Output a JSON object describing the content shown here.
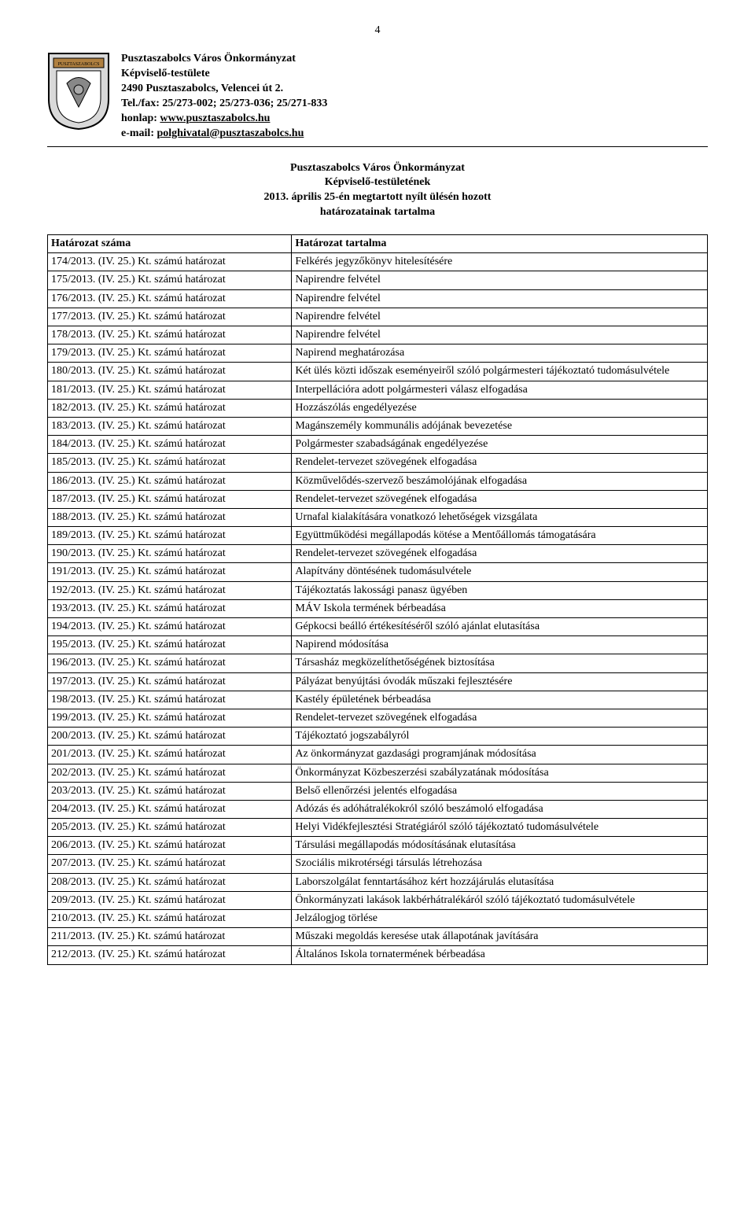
{
  "page_number": "4",
  "org": {
    "line1": "Pusztaszabolcs Város Önkormányzat",
    "line2": "Képviselő-testülete",
    "line3": "2490 Pusztaszabolcs, Velencei út 2.",
    "line4": "Tel./fax: 25/273-002; 25/273-036; 25/271-833",
    "line5_prefix": "honlap: ",
    "line5_link": "www.pusztaszabolcs.hu",
    "line6_prefix": "e-mail: ",
    "line6_link": "polghivatal@pusztaszabolcs.hu"
  },
  "meeting": {
    "l1": "Pusztaszabolcs Város Önkormányzat",
    "l2": "Képviselő-testületének",
    "l3": "2013. április 25-én megtartott nyílt ülésén hozott",
    "l4": "határozatainak tartalma"
  },
  "table": {
    "head_left": "Határozat száma",
    "head_right": "Határozat tartalma",
    "rows": [
      [
        "174/2013. (IV. 25.) Kt. számú határozat",
        "Felkérés jegyzőkönyv hitelesítésére"
      ],
      [
        "175/2013. (IV. 25.) Kt. számú határozat",
        "Napirendre felvétel"
      ],
      [
        "176/2013. (IV. 25.) Kt. számú határozat",
        "Napirendre felvétel"
      ],
      [
        "177/2013. (IV. 25.) Kt. számú határozat",
        "Napirendre felvétel"
      ],
      [
        "178/2013. (IV. 25.) Kt. számú határozat",
        "Napirendre felvétel"
      ],
      [
        "179/2013. (IV. 25.) Kt. számú határozat",
        "Napirend meghatározása"
      ],
      [
        "180/2013. (IV. 25.) Kt. számú határozat",
        "Két ülés közti időszak eseményeiről szóló polgármesteri tájékoztató tudomásulvétele"
      ],
      [
        "181/2013. (IV. 25.) Kt. számú határozat",
        "Interpellációra adott polgármesteri válasz elfogadása"
      ],
      [
        "182/2013. (IV. 25.) Kt. számú határozat",
        "Hozzászólás engedélyezése"
      ],
      [
        "183/2013. (IV. 25.) Kt. számú határozat",
        "Magánszemély kommunális adójának bevezetése"
      ],
      [
        "184/2013. (IV. 25.) Kt. számú határozat",
        "Polgármester szabadságának engedélyezése"
      ],
      [
        "185/2013. (IV. 25.) Kt. számú határozat",
        "Rendelet-tervezet szövegének elfogadása"
      ],
      [
        "186/2013. (IV. 25.) Kt. számú határozat",
        "Közművelődés-szervező beszámolójának elfogadása"
      ],
      [
        "187/2013. (IV. 25.) Kt. számú határozat",
        "Rendelet-tervezet szövegének elfogadása"
      ],
      [
        "188/2013. (IV. 25.) Kt. számú határozat",
        "Urnafal kialakítására vonatkozó lehetőségek vizsgálata"
      ],
      [
        "189/2013. (IV. 25.) Kt. számú határozat",
        "Együttműködési megállapodás kötése a Mentőállomás támogatására"
      ],
      [
        "190/2013. (IV. 25.) Kt. számú határozat",
        "Rendelet-tervezet szövegének elfogadása"
      ],
      [
        "191/2013. (IV. 25.) Kt. számú határozat",
        "Alapítvány döntésének tudomásulvétele"
      ],
      [
        "192/2013. (IV. 25.) Kt. számú határozat",
        "Tájékoztatás lakossági panasz ügyében"
      ],
      [
        "193/2013. (IV. 25.) Kt. számú határozat",
        "MÁV Iskola termének bérbeadása"
      ],
      [
        "194/2013. (IV. 25.) Kt. számú határozat",
        "Gépkocsi beálló értékesítéséről szóló ajánlat elutasítása"
      ],
      [
        "195/2013. (IV. 25.) Kt. számú határozat",
        "Napirend módosítása"
      ],
      [
        "196/2013. (IV. 25.) Kt. számú határozat",
        "Társasház megközelíthetőségének biztosítása"
      ],
      [
        "197/2013. (IV. 25.) Kt. számú határozat",
        "Pályázat benyújtási óvodák műszaki fejlesztésére"
      ],
      [
        "198/2013. (IV. 25.) Kt. számú határozat",
        "Kastély épületének bérbeadása"
      ],
      [
        "199/2013. (IV. 25.) Kt. számú határozat",
        "Rendelet-tervezet szövegének elfogadása"
      ],
      [
        "200/2013. (IV. 25.) Kt. számú határozat",
        "Tájékoztató jogszabályról"
      ],
      [
        "201/2013. (IV. 25.) Kt. számú határozat",
        "Az önkormányzat gazdasági programjának módosítása"
      ],
      [
        "202/2013. (IV. 25.) Kt. számú határozat",
        "Önkormányzat Közbeszerzési szabályzatának módosítása"
      ],
      [
        "203/2013. (IV. 25.) Kt. számú határozat",
        "Belső ellenőrzési jelentés elfogadása"
      ],
      [
        "204/2013. (IV. 25.) Kt. számú határozat",
        "Adózás és adóhátralékokról szóló beszámoló elfogadása"
      ],
      [
        "205/2013. (IV. 25.) Kt. számú határozat",
        "Helyi Vidékfejlesztési Stratégiáról szóló tájékoztató tudomásulvétele"
      ],
      [
        "206/2013. (IV. 25.) Kt. számú határozat",
        "Társulási megállapodás módosításának elutasítása"
      ],
      [
        "207/2013. (IV. 25.) Kt. számú határozat",
        "Szociális mikrotérségi társulás létrehozása"
      ],
      [
        "208/2013. (IV. 25.) Kt. számú határozat",
        "Laborszolgálat fenntartásához kért hozzájárulás elutasítása"
      ],
      [
        "209/2013. (IV. 25.) Kt. számú határozat",
        "Önkormányzati lakások lakbérhátralékáról szóló tájékoztató tudomásulvétele"
      ],
      [
        "210/2013. (IV. 25.) Kt. számú határozat",
        "Jelzálogjog törlése"
      ],
      [
        "211/2013. (IV. 25.) Kt. számú határozat",
        "Műszaki megoldás keresése utak állapotának javítására"
      ],
      [
        "212/2013. (IV. 25.) Kt. számú határozat",
        "Általános Iskola tornatermének bérbeadása"
      ]
    ]
  }
}
